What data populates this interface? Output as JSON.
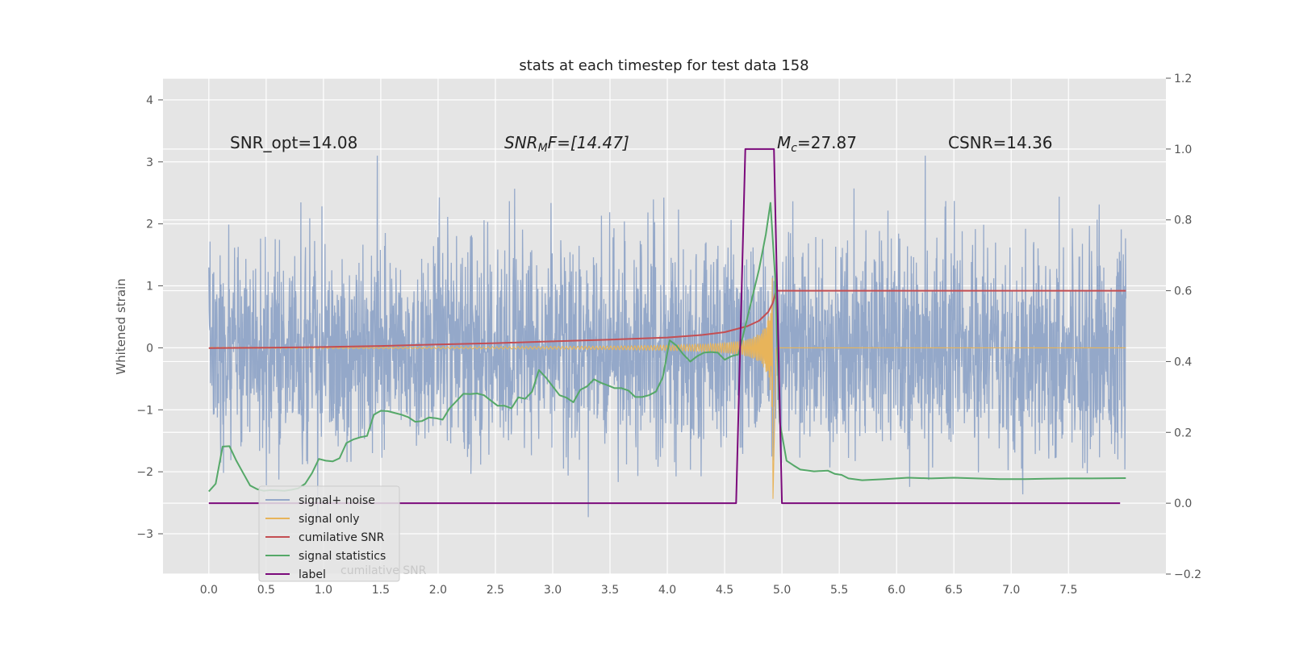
{
  "chart_data": {
    "type": "line",
    "title": "stats at each timestep for test data 158",
    "ylabel": "Whitened strain",
    "xlabel": "",
    "xlim": [
      -0.4,
      8.35
    ],
    "ylim": [
      -3.65,
      4.35
    ],
    "y2lim": [
      -0.2,
      1.2
    ],
    "x_ticks": [
      "0.0",
      "0.5",
      "1.0",
      "1.5",
      "2.0",
      "2.5",
      "3.0",
      "3.5",
      "4.0",
      "4.5",
      "5.0",
      "5.5",
      "6.0",
      "6.5",
      "7.0",
      "7.5"
    ],
    "y_ticks": [
      "4",
      "3",
      "2",
      "1",
      "0",
      "−1",
      "−2",
      "−3"
    ],
    "y2_ticks": [
      "1.2",
      "1.0",
      "0.8",
      "0.6",
      "0.4",
      "0.2",
      "0.0",
      "−0.2"
    ],
    "grid": true,
    "legend_position": "lower-left",
    "annotations": {
      "snr_opt": "SNR_opt=14.08",
      "snr_mf_prefix": "SNR",
      "snr_mf_sub": "M",
      "snr_mf_suffix": "F=[14.47]",
      "mc_prefix": "M",
      "mc_sub": "c",
      "mc_suffix": "=27.87",
      "csnr": "CSNR=14.36"
    },
    "legend_overlap_text": "cumilative SNR",
    "colors": {
      "noise": "#94a8c9",
      "signal": "#e8b45a",
      "cumulative": "#c44e52",
      "statistics": "#55a868",
      "label": "#7b0a7b",
      "background": "#e5e5e5"
    },
    "series": [
      {
        "name": "signal+ noise",
        "description_of_envelope": "whitened strain noise, dense band approx ±1, spikes up to ±3",
        "envelope": {
          "x_range": [
            0.0,
            8.0
          ],
          "band": [
            -1.0,
            0.9
          ],
          "max_spike": 3.1,
          "min_spike": -3.1
        }
      },
      {
        "name": "signal only",
        "chirp": {
          "x_start": 0.0,
          "x_peak": 4.92,
          "x_end": 8.0,
          "peak_amplitude": 2.3
        }
      },
      {
        "name": "cumilative SNR",
        "axis": "right",
        "points": [
          [
            0.0,
            0.438
          ],
          [
            0.5,
            0.439
          ],
          [
            1.0,
            0.441
          ],
          [
            1.5,
            0.444
          ],
          [
            2.0,
            0.448
          ],
          [
            2.5,
            0.452
          ],
          [
            3.0,
            0.457
          ],
          [
            3.5,
            0.462
          ],
          [
            4.0,
            0.468
          ],
          [
            4.3,
            0.475
          ],
          [
            4.5,
            0.483
          ],
          [
            4.7,
            0.5
          ],
          [
            4.8,
            0.515
          ],
          [
            4.88,
            0.54
          ],
          [
            4.92,
            0.565
          ],
          [
            4.95,
            0.6
          ],
          [
            5.0,
            0.6
          ],
          [
            8.0,
            0.6
          ]
        ]
      },
      {
        "name": "signal statistics",
        "axis": "right",
        "points": [
          [
            0.0,
            0.033
          ],
          [
            0.06,
            0.055
          ],
          [
            0.12,
            0.16
          ],
          [
            0.18,
            0.161
          ],
          [
            0.24,
            0.12
          ],
          [
            0.3,
            0.085
          ],
          [
            0.36,
            0.05
          ],
          [
            0.42,
            0.04
          ],
          [
            0.48,
            0.035
          ],
          [
            0.54,
            0.037
          ],
          [
            0.6,
            0.036
          ],
          [
            0.66,
            0.035
          ],
          [
            0.72,
            0.038
          ],
          [
            0.78,
            0.042
          ],
          [
            0.84,
            0.055
          ],
          [
            0.9,
            0.085
          ],
          [
            0.96,
            0.125
          ],
          [
            1.02,
            0.12
          ],
          [
            1.08,
            0.118
          ],
          [
            1.14,
            0.127
          ],
          [
            1.2,
            0.17
          ],
          [
            1.26,
            0.18
          ],
          [
            1.32,
            0.186
          ],
          [
            1.38,
            0.19
          ],
          [
            1.44,
            0.25
          ],
          [
            1.5,
            0.261
          ],
          [
            1.56,
            0.26
          ],
          [
            1.62,
            0.255
          ],
          [
            1.68,
            0.25
          ],
          [
            1.74,
            0.243
          ],
          [
            1.8,
            0.23
          ],
          [
            1.86,
            0.232
          ],
          [
            1.92,
            0.242
          ],
          [
            1.98,
            0.24
          ],
          [
            2.04,
            0.236
          ],
          [
            2.1,
            0.268
          ],
          [
            2.16,
            0.288
          ],
          [
            2.22,
            0.309
          ],
          [
            2.28,
            0.308
          ],
          [
            2.34,
            0.31
          ],
          [
            2.4,
            0.305
          ],
          [
            2.46,
            0.29
          ],
          [
            2.52,
            0.275
          ],
          [
            2.58,
            0.275
          ],
          [
            2.64,
            0.268
          ],
          [
            2.7,
            0.299
          ],
          [
            2.76,
            0.295
          ],
          [
            2.82,
            0.315
          ],
          [
            2.88,
            0.376
          ],
          [
            2.94,
            0.355
          ],
          [
            3.0,
            0.33
          ],
          [
            3.06,
            0.305
          ],
          [
            3.12,
            0.298
          ],
          [
            3.18,
            0.285
          ],
          [
            3.24,
            0.32
          ],
          [
            3.3,
            0.33
          ],
          [
            3.36,
            0.35
          ],
          [
            3.42,
            0.34
          ],
          [
            3.48,
            0.333
          ],
          [
            3.54,
            0.325
          ],
          [
            3.6,
            0.325
          ],
          [
            3.66,
            0.318
          ],
          [
            3.72,
            0.3
          ],
          [
            3.78,
            0.3
          ],
          [
            3.84,
            0.305
          ],
          [
            3.9,
            0.315
          ],
          [
            3.96,
            0.355
          ],
          [
            4.02,
            0.46
          ],
          [
            4.08,
            0.445
          ],
          [
            4.14,
            0.42
          ],
          [
            4.2,
            0.4
          ],
          [
            4.26,
            0.415
          ],
          [
            4.32,
            0.425
          ],
          [
            4.38,
            0.427
          ],
          [
            4.44,
            0.425
          ],
          [
            4.5,
            0.405
          ],
          [
            4.56,
            0.415
          ],
          [
            4.62,
            0.42
          ],
          [
            4.68,
            0.5
          ],
          [
            4.74,
            0.58
          ],
          [
            4.8,
            0.66
          ],
          [
            4.86,
            0.76
          ],
          [
            4.9,
            0.848
          ],
          [
            4.94,
            0.64
          ],
          [
            4.98,
            0.23
          ],
          [
            5.04,
            0.12
          ],
          [
            5.1,
            0.107
          ],
          [
            5.16,
            0.095
          ],
          [
            5.28,
            0.09
          ],
          [
            5.4,
            0.092
          ],
          [
            5.46,
            0.083
          ],
          [
            5.52,
            0.08
          ],
          [
            5.58,
            0.07
          ],
          [
            5.7,
            0.065
          ],
          [
            5.9,
            0.068
          ],
          [
            6.1,
            0.072
          ],
          [
            6.3,
            0.07
          ],
          [
            6.5,
            0.072
          ],
          [
            6.7,
            0.07
          ],
          [
            6.9,
            0.068
          ],
          [
            7.1,
            0.068
          ],
          [
            7.3,
            0.069
          ],
          [
            7.5,
            0.07
          ],
          [
            7.7,
            0.07
          ],
          [
            8.0,
            0.071
          ]
        ]
      },
      {
        "name": "label",
        "axis": "right",
        "points": [
          [
            0.0,
            0.0
          ],
          [
            4.6,
            0.0
          ],
          [
            4.68,
            1.0
          ],
          [
            4.93,
            1.0
          ],
          [
            5.0,
            0.0
          ],
          [
            7.95,
            0.0
          ]
        ]
      }
    ]
  }
}
